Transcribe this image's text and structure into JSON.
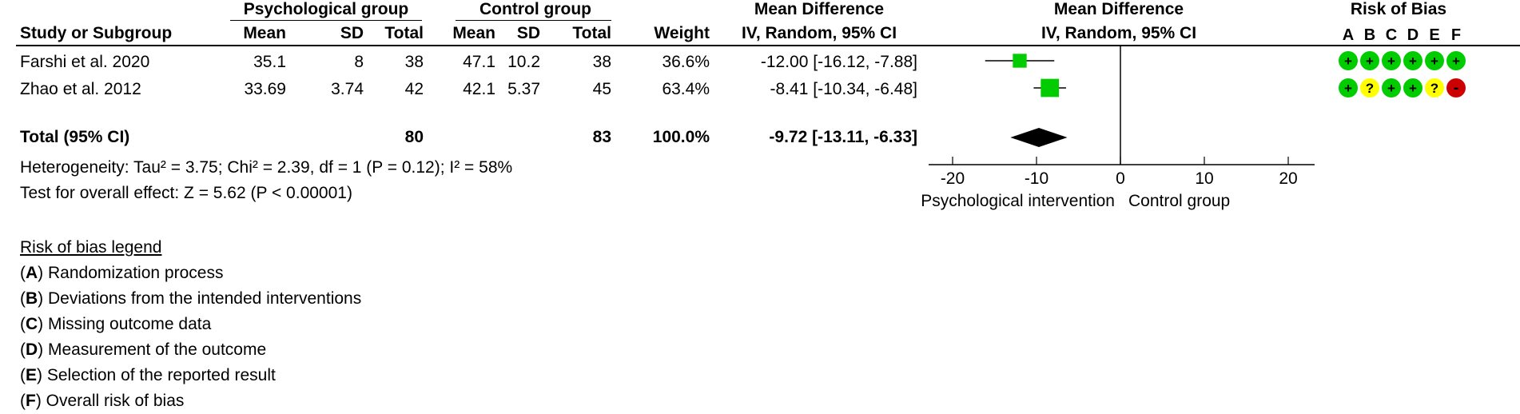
{
  "headers": {
    "group1": "Psychological group",
    "group2": "Control group",
    "md_top_left": "Mean Difference",
    "md_top_right": "Mean Difference",
    "rob_top": "Risk of Bias",
    "study": "Study or Subgroup",
    "mean1": "Mean",
    "sd1": "SD",
    "total1": "Total",
    "mean2": "Mean",
    "sd2": "SD",
    "total2": "Total",
    "weight": "Weight",
    "md_sub_left": "IV, Random, 95% CI",
    "md_sub_right": "IV, Random, 95% CI",
    "rob_letters": [
      "A",
      "B",
      "C",
      "D",
      "E",
      "F"
    ]
  },
  "studies": [
    {
      "name": "Farshi et al. 2020",
      "mean1": "35.1",
      "sd1": "8",
      "total1": "38",
      "mean2": "47.1",
      "sd2": "10.2",
      "total2": "38",
      "weight": "36.6%",
      "ci_text": "-12.00 [-16.12, -7.88]"
    },
    {
      "name": "Zhao et al. 2012",
      "mean1": "33.69",
      "sd1": "3.74",
      "total1": "42",
      "mean2": "42.1",
      "sd2": "5.37",
      "total2": "45",
      "weight": "63.4%",
      "ci_text": "-8.41 [-10.34, -6.48]"
    }
  ],
  "total": {
    "label": "Total (95% CI)",
    "total1": "80",
    "total2": "83",
    "weight": "100.0%",
    "ci_text": "-9.72 [-13.11, -6.33]"
  },
  "heterogeneity": "Heterogeneity: Tau² = 3.75; Chi² = 2.39, df = 1 (P = 0.12); I² = 58%",
  "overall_effect": "Test for overall effect: Z = 5.62 (P < 0.00001)",
  "legend": {
    "title": "Risk of bias legend",
    "items": [
      {
        "letter": "A",
        "text": "Randomization process"
      },
      {
        "letter": "B",
        "text": "Deviations from the intended interventions"
      },
      {
        "letter": "C",
        "text": "Missing outcome data"
      },
      {
        "letter": "D",
        "text": "Measurement of the outcome"
      },
      {
        "letter": "E",
        "text": "Selection of the reported result"
      },
      {
        "letter": "F",
        "text": "Overall risk of bias"
      }
    ]
  },
  "colors": {
    "low": "#00cc00",
    "some": "#ffff00",
    "high": "#cc0000",
    "marker": "#00cc00",
    "line": "#000000"
  },
  "chart_data": {
    "type": "forest",
    "xlim": [
      -20,
      20
    ],
    "ticks": [
      -20,
      -10,
      0,
      10,
      20
    ],
    "tick_labels": [
      "-20",
      "-10",
      "0",
      "10",
      "20"
    ],
    "xlabel_left": "Psychological intervention",
    "xlabel_right": "Control group",
    "studies": [
      {
        "name": "Farshi et al. 2020",
        "md": -12.0,
        "lo": -16.12,
        "hi": -7.88,
        "weight": 36.6,
        "rob": [
          "+",
          "+",
          "+",
          "+",
          "+",
          "+"
        ]
      },
      {
        "name": "Zhao et al. 2012",
        "md": -8.41,
        "lo": -10.34,
        "hi": -6.48,
        "weight": 63.4,
        "rob": [
          "+",
          "?",
          "+",
          "+",
          "?",
          "-"
        ]
      }
    ],
    "pooled": {
      "md": -9.72,
      "lo": -13.11,
      "hi": -6.33
    }
  }
}
